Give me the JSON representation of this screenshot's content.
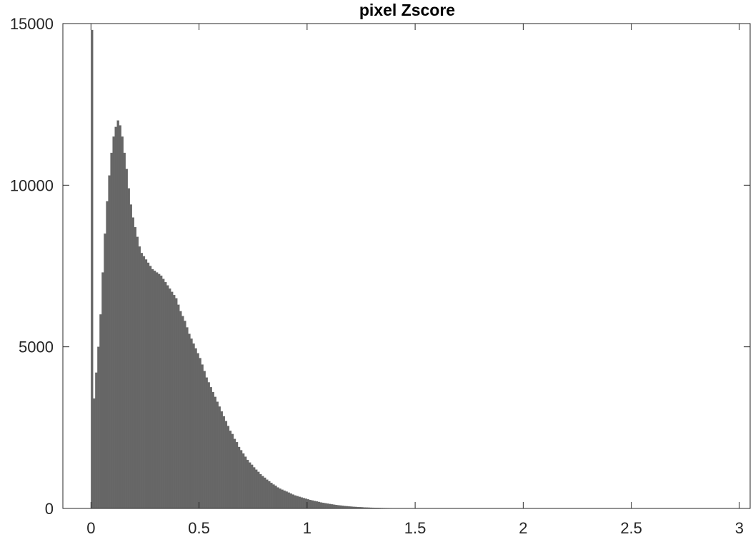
{
  "chart_data": {
    "type": "bar",
    "title": "pixel Zscore",
    "xlabel": "",
    "ylabel": "",
    "xlim": [
      -0.13,
      3.05
    ],
    "ylim": [
      0,
      15000
    ],
    "xticks": [
      0,
      0.5,
      1,
      1.5,
      2,
      2.5,
      3
    ],
    "xtick_labels": [
      "0",
      "0.5",
      "1",
      "1.5",
      "2",
      "2.5",
      "3"
    ],
    "yticks": [
      0,
      5000,
      10000,
      15000
    ],
    "ytick_labels": [
      "0",
      "5000",
      "10000",
      "15000"
    ],
    "grid": false,
    "bar_color": "#666666",
    "bin_width": 0.01,
    "x": [
      0.005,
      0.015,
      0.025,
      0.035,
      0.045,
      0.055,
      0.065,
      0.075,
      0.085,
      0.095,
      0.105,
      0.115,
      0.125,
      0.135,
      0.145,
      0.155,
      0.165,
      0.175,
      0.185,
      0.195,
      0.205,
      0.215,
      0.225,
      0.235,
      0.245,
      0.255,
      0.265,
      0.275,
      0.285,
      0.295,
      0.305,
      0.315,
      0.325,
      0.335,
      0.345,
      0.355,
      0.365,
      0.375,
      0.385,
      0.395,
      0.405,
      0.415,
      0.425,
      0.435,
      0.445,
      0.455,
      0.465,
      0.475,
      0.485,
      0.495,
      0.505,
      0.515,
      0.525,
      0.535,
      0.545,
      0.555,
      0.565,
      0.575,
      0.585,
      0.595,
      0.605,
      0.615,
      0.625,
      0.635,
      0.645,
      0.655,
      0.665,
      0.675,
      0.685,
      0.695,
      0.705,
      0.715,
      0.725,
      0.735,
      0.745,
      0.755,
      0.765,
      0.775,
      0.785,
      0.795,
      0.805,
      0.815,
      0.825,
      0.835,
      0.845,
      0.855,
      0.865,
      0.875,
      0.885,
      0.895,
      0.905,
      0.915,
      0.925,
      0.935,
      0.945,
      0.955,
      0.965,
      0.975,
      0.985,
      0.995,
      1.005,
      1.015,
      1.025,
      1.035,
      1.045,
      1.055,
      1.065,
      1.075,
      1.085,
      1.095,
      1.105,
      1.115,
      1.125,
      1.135,
      1.145,
      1.155,
      1.165,
      1.175,
      1.185,
      1.195,
      1.205,
      1.215,
      1.225,
      1.235,
      1.245,
      1.255,
      1.265,
      1.275,
      1.285,
      1.295,
      1.305,
      1.315,
      1.325,
      1.335,
      1.345,
      1.355,
      1.365,
      1.375,
      1.385,
      1.395,
      1.405,
      1.415,
      1.425,
      1.435,
      1.445,
      1.455,
      1.465,
      1.475,
      1.485,
      1.495,
      1.505,
      1.515,
      1.525,
      1.535,
      1.545,
      1.555,
      1.565,
      1.575,
      1.585,
      1.595
    ],
    "values": [
      14800,
      3400,
      4200,
      5000,
      6000,
      7300,
      8500,
      9500,
      10300,
      11000,
      11500,
      11800,
      12000,
      11850,
      11500,
      11000,
      10500,
      9900,
      9400,
      9000,
      8700,
      8400,
      8100,
      7900,
      7800,
      7700,
      7600,
      7500,
      7400,
      7350,
      7300,
      7250,
      7200,
      7100,
      7000,
      6900,
      6800,
      6700,
      6600,
      6500,
      6300,
      6100,
      5950,
      5800,
      5600,
      5400,
      5250,
      5100,
      4950,
      4800,
      4650,
      4450,
      4250,
      4050,
      3900,
      3750,
      3600,
      3450,
      3300,
      3150,
      3000,
      2850,
      2700,
      2550,
      2400,
      2300,
      2150,
      2050,
      1900,
      1800,
      1700,
      1600,
      1500,
      1420,
      1350,
      1270,
      1200,
      1130,
      1060,
      1000,
      950,
      890,
      840,
      790,
      740,
      700,
      650,
      610,
      580,
      550,
      520,
      490,
      460,
      430,
      400,
      380,
      360,
      340,
      320,
      300,
      280,
      262,
      245,
      230,
      215,
      200,
      185,
      172,
      160,
      148,
      136,
      125,
      115,
      106,
      98,
      90,
      82,
      75,
      68,
      62,
      56,
      51,
      46,
      42,
      38,
      34,
      30,
      27,
      24,
      22,
      20,
      18,
      16,
      14,
      12,
      11,
      10,
      9,
      8,
      7,
      6,
      6,
      5,
      5,
      4,
      4,
      3,
      3,
      3,
      2,
      2,
      2,
      1,
      1,
      1,
      1,
      1,
      1,
      0,
      0
    ]
  }
}
